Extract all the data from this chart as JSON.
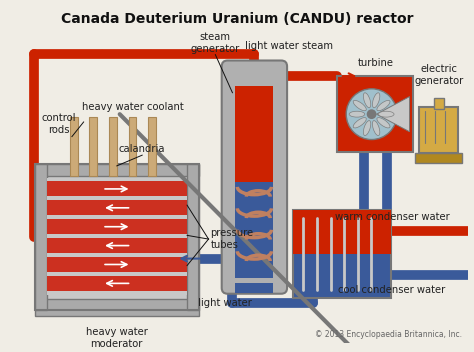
{
  "title": "Canada Deuterium Uranium (CANDU) reactor",
  "title_fontsize": 10,
  "background_color": "#f0ede5",
  "copyright": "© 2013 Encyclopaedia Britannica, Inc.",
  "labels": {
    "steam_generator": "steam\ngenerator",
    "light_water_steam": "light water steam",
    "turbine": "turbine",
    "electric_generator": "electric\ngenerator",
    "heavy_water_coolant": "heavy water coolant",
    "control_rods": "control\nrods",
    "calandria": "calandria",
    "pressure_tubes": "pressure\ntubes",
    "heavy_water_moderator": "heavy water\nmoderator",
    "light_water": "light water",
    "warm_condenser": "warm condenser water",
    "cool_condenser": "cool condenser water"
  },
  "colors": {
    "bg": "#f0ede5",
    "pipe_red": "#cc2200",
    "pipe_blue": "#3a5a9a",
    "gray_frame": "#aaaaaa",
    "gray_dark": "#777777",
    "gray_light": "#c8c8c8",
    "reactor_red": "#cc3020",
    "reactor_blue": "#3a5a9a",
    "sg_gray": "#b0b0b0",
    "sg_red": "#cc2200",
    "sg_blue": "#3a5a9a",
    "coil_color": "#c08060",
    "turbine_red": "#cc2200",
    "turbine_fan": "#a0c0cc",
    "gold": "#d4aa44",
    "gold_dark": "#b08820",
    "white": "#ffffff",
    "black": "#111111",
    "text_color": "#222222"
  }
}
